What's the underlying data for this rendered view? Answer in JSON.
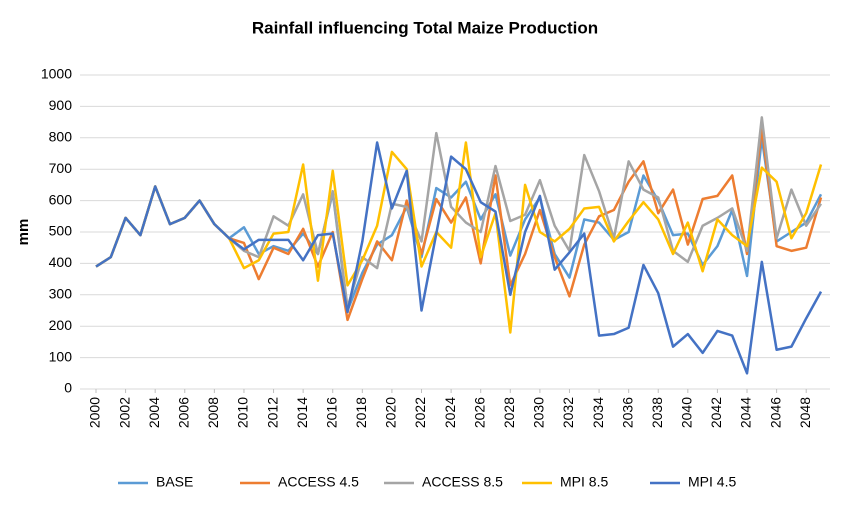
{
  "chart_data": {
    "type": "line",
    "title": "Rainfall influencing Total Maize Production",
    "y_label": "mm",
    "x": [
      2000,
      2001,
      2002,
      2003,
      2004,
      2005,
      2006,
      2007,
      2008,
      2009,
      2010,
      2011,
      2012,
      2013,
      2014,
      2015,
      2016,
      2017,
      2018,
      2019,
      2020,
      2021,
      2022,
      2023,
      2024,
      2025,
      2026,
      2027,
      2028,
      2029,
      2030,
      2031,
      2032,
      2033,
      2034,
      2035,
      2036,
      2037,
      2038,
      2039,
      2040,
      2041,
      2042,
      2043,
      2044,
      2045,
      2046,
      2047,
      2048,
      2049
    ],
    "xlim": [
      2000,
      2049
    ],
    "xticks": [
      2000,
      2002,
      2004,
      2006,
      2008,
      2010,
      2012,
      2014,
      2016,
      2018,
      2020,
      2022,
      2024,
      2026,
      2028,
      2030,
      2032,
      2034,
      2036,
      2038,
      2040,
      2042,
      2044,
      2046,
      2048
    ],
    "ylim": [
      0,
      1000
    ],
    "yticks": [
      0,
      100,
      200,
      300,
      400,
      500,
      600,
      700,
      800,
      900,
      1000
    ],
    "grid": true,
    "legend": "bottom",
    "series": [
      {
        "name": "BASE",
        "color": "#5b9bd5",
        "values": [
          390,
          420,
          545,
          490,
          645,
          525,
          545,
          600,
          525,
          480,
          515,
          430,
          455,
          440,
          495,
          430,
          625,
          250,
          370,
          460,
          490,
          580,
          420,
          640,
          610,
          660,
          540,
          620,
          425,
          540,
          610,
          430,
          355,
          540,
          530,
          475,
          500,
          680,
          600,
          490,
          495,
          395,
          455,
          570,
          360,
          800,
          470,
          500,
          530,
          620
        ]
      },
      {
        "name": "ACCESS 4.5",
        "color": "#ed7d31",
        "values": [
          390,
          420,
          545,
          490,
          645,
          525,
          545,
          600,
          525,
          480,
          465,
          350,
          450,
          430,
          510,
          390,
          500,
          220,
          350,
          470,
          410,
          600,
          430,
          605,
          530,
          610,
          400,
          680,
          330,
          430,
          570,
          420,
          295,
          460,
          550,
          570,
          660,
          725,
          560,
          635,
          460,
          605,
          615,
          680,
          430,
          830,
          455,
          440,
          450,
          610
        ]
      },
      {
        "name": "ACCESS 8.5",
        "color": "#a5a5a5",
        "values": [
          390,
          420,
          545,
          490,
          645,
          525,
          545,
          600,
          525,
          480,
          440,
          420,
          550,
          520,
          620,
          430,
          630,
          260,
          420,
          385,
          590,
          580,
          470,
          815,
          580,
          530,
          500,
          710,
          535,
          555,
          665,
          520,
          440,
          745,
          630,
          480,
          725,
          635,
          610,
          440,
          405,
          520,
          545,
          575,
          440,
          865,
          480,
          635,
          520,
          590
        ]
      },
      {
        "name": "MPI 8.5",
        "color": "#ffc000",
        "values": [
          390,
          420,
          545,
          490,
          645,
          525,
          545,
          600,
          525,
          480,
          385,
          410,
          495,
          500,
          715,
          345,
          695,
          330,
          410,
          520,
          755,
          700,
          390,
          500,
          450,
          785,
          420,
          560,
          180,
          650,
          500,
          470,
          510,
          575,
          580,
          470,
          535,
          595,
          540,
          430,
          530,
          375,
          540,
          490,
          455,
          705,
          660,
          480,
          560,
          715
        ]
      },
      {
        "name": "MPI 4.5",
        "color": "#4472c4",
        "values": [
          390,
          420,
          545,
          490,
          645,
          525,
          545,
          600,
          525,
          480,
          445,
          475,
          475,
          475,
          410,
          490,
          495,
          245,
          470,
          785,
          575,
          695,
          250,
          495,
          740,
          700,
          595,
          565,
          300,
          500,
          615,
          380,
          435,
          495,
          170,
          175,
          195,
          395,
          305,
          135,
          175,
          115,
          185,
          170,
          50,
          405,
          125,
          135,
          225,
          310
        ]
      }
    ]
  }
}
